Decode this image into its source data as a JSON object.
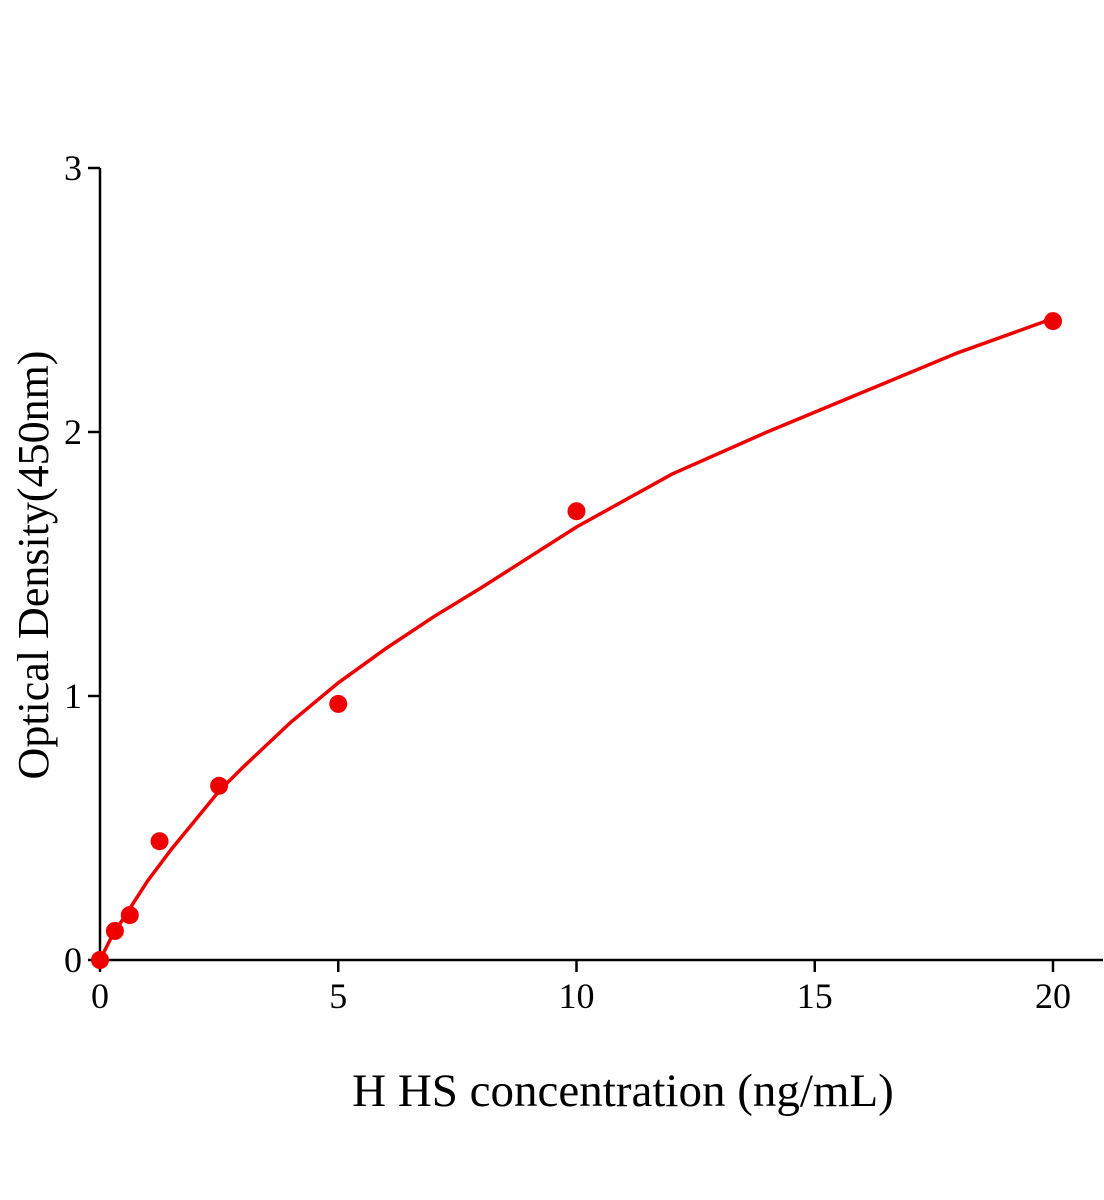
{
  "chart_data": {
    "type": "scatter",
    "title": "",
    "xlabel": "H HS concentration (ng/mL)",
    "ylabel": "Optical Density(450nm)",
    "xlim": [
      0,
      21
    ],
    "ylim": [
      0,
      3
    ],
    "xticks": [
      "0",
      "5",
      "10",
      "15",
      "20"
    ],
    "yticks": [
      "0",
      "1",
      "2",
      "3"
    ],
    "grid": false,
    "legend": "none",
    "color": "#ee0000",
    "points": {
      "x": [
        0,
        0.3125,
        0.625,
        1.25,
        2.5,
        5,
        10,
        20
      ],
      "y": [
        0.0,
        0.11,
        0.17,
        0.45,
        0.66,
        0.97,
        1.7,
        2.42
      ]
    },
    "fit_curve": {
      "x": [
        0,
        0.25,
        0.5,
        1,
        1.5,
        2,
        2.5,
        3,
        4,
        5,
        6,
        7,
        8,
        10,
        12,
        14,
        16,
        18,
        20
      ],
      "y": [
        0,
        0.09,
        0.16,
        0.3,
        0.42,
        0.53,
        0.64,
        0.73,
        0.9,
        1.05,
        1.18,
        1.3,
        1.41,
        1.64,
        1.84,
        2.0,
        2.15,
        2.3,
        2.43
      ]
    }
  }
}
